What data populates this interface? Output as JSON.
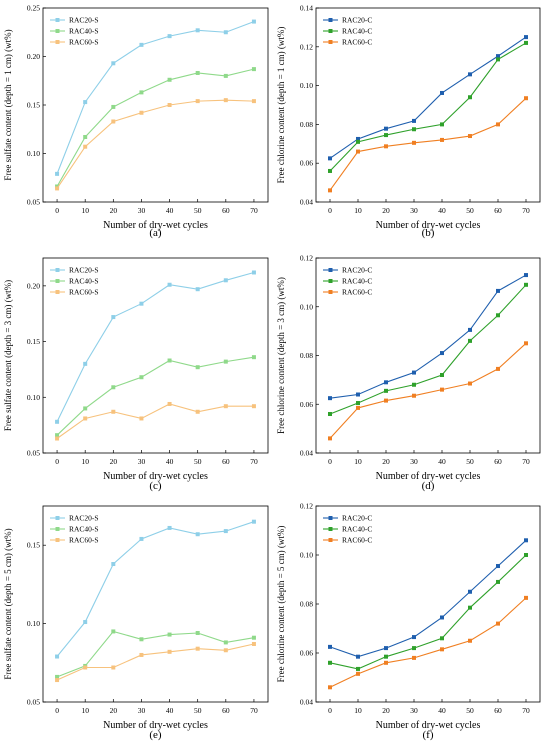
{
  "panels_order": [
    "a",
    "b",
    "c",
    "d",
    "e",
    "f"
  ],
  "chart_data": [
    {
      "id": "a",
      "panel_label": "(a)",
      "type": "line",
      "x": [
        0,
        10,
        20,
        30,
        40,
        50,
        60,
        70
      ],
      "xlabel": "Number of dry-wet cycles",
      "ylabel": "Free sulfate content (depth = 1 cm) (wt%)",
      "ylim": [
        0.05,
        0.25
      ],
      "yticks": [
        "0.05",
        "0.10",
        "0.15",
        "0.20",
        "0.25"
      ],
      "legend_position": "top-left",
      "series": [
        {
          "name": "RAC20-S",
          "color": "#8ecfe8",
          "values": [
            0.079,
            0.153,
            0.193,
            0.212,
            0.221,
            0.227,
            0.225,
            0.236
          ]
        },
        {
          "name": "RAC40-S",
          "color": "#8fd98a",
          "values": [
            0.066,
            0.117,
            0.148,
            0.163,
            0.176,
            0.183,
            0.18,
            0.187
          ]
        },
        {
          "name": "RAC60-S",
          "color": "#f7c27d",
          "values": [
            0.064,
            0.107,
            0.133,
            0.142,
            0.15,
            0.154,
            0.155,
            0.154
          ]
        }
      ]
    },
    {
      "id": "b",
      "panel_label": "(b)",
      "type": "line",
      "x": [
        0,
        10,
        20,
        30,
        40,
        50,
        60,
        70
      ],
      "xlabel": "Number of dry-wet cycles",
      "ylabel": "Free chlorine content (depth = 1 cm) (wt%)",
      "ylim": [
        0.04,
        0.14
      ],
      "yticks": [
        "0.04",
        "0.06",
        "0.08",
        "0.10",
        "0.12",
        "0.14"
      ],
      "legend_position": "top-left",
      "series": [
        {
          "name": "RAC20-C",
          "color": "#1f5fae",
          "values": [
            0.0625,
            0.0725,
            0.0778,
            0.0818,
            0.0962,
            0.1058,
            0.1152,
            0.125
          ]
        },
        {
          "name": "RAC40-C",
          "color": "#2fa12b",
          "values": [
            0.056,
            0.071,
            0.0745,
            0.0775,
            0.08,
            0.094,
            0.1135,
            0.122
          ]
        },
        {
          "name": "RAC60-C",
          "color": "#f07f22",
          "values": [
            0.046,
            0.066,
            0.0687,
            0.0705,
            0.072,
            0.074,
            0.08,
            0.0935
          ]
        }
      ]
    },
    {
      "id": "c",
      "panel_label": "(c)",
      "type": "line",
      "x": [
        0,
        10,
        20,
        30,
        40,
        50,
        60,
        70
      ],
      "xlabel": "Number of dry-wet cycles",
      "ylabel": "Free sulfate content (depth = 3 cm) (wt%)",
      "ylim": [
        0.05,
        0.225
      ],
      "yticks": [
        "0.05",
        "0.10",
        "0.15",
        "0.20"
      ],
      "legend_position": "top-left",
      "series": [
        {
          "name": "RAC20-S",
          "color": "#8ecfe8",
          "values": [
            0.078,
            0.13,
            0.172,
            0.184,
            0.201,
            0.197,
            0.205,
            0.212
          ]
        },
        {
          "name": "RAC40-S",
          "color": "#8fd98a",
          "values": [
            0.066,
            0.09,
            0.109,
            0.118,
            0.133,
            0.127,
            0.132,
            0.136
          ]
        },
        {
          "name": "RAC60-S",
          "color": "#f7c27d",
          "values": [
            0.063,
            0.081,
            0.087,
            0.081,
            0.094,
            0.087,
            0.092,
            0.092
          ]
        }
      ]
    },
    {
      "id": "d",
      "panel_label": "(d)",
      "type": "line",
      "x": [
        0,
        10,
        20,
        30,
        40,
        50,
        60,
        70
      ],
      "xlabel": "Number of dry-wet cycles",
      "ylabel": "Free chlorine content (depth = 3 cm) (wt%)",
      "ylim": [
        0.04,
        0.12
      ],
      "yticks": [
        "0.04",
        "0.06",
        "0.08",
        "0.10",
        "0.12"
      ],
      "legend_position": "top-left",
      "series": [
        {
          "name": "RAC20-C",
          "color": "#1f5fae",
          "values": [
            0.0625,
            0.064,
            0.069,
            0.073,
            0.081,
            0.0905,
            0.1065,
            0.113
          ]
        },
        {
          "name": "RAC40-C",
          "color": "#2fa12b",
          "values": [
            0.056,
            0.0605,
            0.0655,
            0.068,
            0.072,
            0.086,
            0.0965,
            0.109
          ]
        },
        {
          "name": "RAC60-C",
          "color": "#f07f22",
          "values": [
            0.046,
            0.0585,
            0.0615,
            0.0635,
            0.066,
            0.0685,
            0.0745,
            0.085
          ]
        }
      ]
    },
    {
      "id": "e",
      "panel_label": "(e)",
      "type": "line",
      "x": [
        0,
        10,
        20,
        30,
        40,
        50,
        60,
        70
      ],
      "xlabel": "Number of dry-wet cycles",
      "ylabel": "Free sulfate content (depth = 5 cm) (wt%)",
      "ylim": [
        0.05,
        0.175
      ],
      "yticks": [
        "0.05",
        "0.10",
        "0.15"
      ],
      "legend_position": "top-left",
      "series": [
        {
          "name": "RAC20-S",
          "color": "#8ecfe8",
          "values": [
            0.079,
            0.101,
            0.138,
            0.154,
            0.161,
            0.157,
            0.159,
            0.165
          ]
        },
        {
          "name": "RAC40-S",
          "color": "#8fd98a",
          "values": [
            0.066,
            0.073,
            0.095,
            0.09,
            0.093,
            0.094,
            0.088,
            0.091
          ]
        },
        {
          "name": "RAC60-S",
          "color": "#f7c27d",
          "values": [
            0.064,
            0.072,
            0.072,
            0.08,
            0.082,
            0.084,
            0.083,
            0.087
          ]
        }
      ]
    },
    {
      "id": "f",
      "panel_label": "(f)",
      "type": "line",
      "x": [
        0,
        10,
        20,
        30,
        40,
        50,
        60,
        70
      ],
      "xlabel": "Number of dry-wet cycles",
      "ylabel": "Free chlorine content (depth = 5 cm) (wt%)",
      "ylim": [
        0.04,
        0.12
      ],
      "yticks": [
        "0.04",
        "0.06",
        "0.08",
        "0.10",
        "0.12"
      ],
      "legend_position": "top-left",
      "series": [
        {
          "name": "RAC20-C",
          "color": "#1f5fae",
          "values": [
            0.0625,
            0.0585,
            0.062,
            0.0665,
            0.0745,
            0.085,
            0.0955,
            0.106
          ]
        },
        {
          "name": "RAC40-C",
          "color": "#2fa12b",
          "values": [
            0.056,
            0.0535,
            0.0585,
            0.062,
            0.066,
            0.0785,
            0.089,
            0.1
          ]
        },
        {
          "name": "RAC60-C",
          "color": "#f07f22",
          "values": [
            0.046,
            0.0515,
            0.056,
            0.058,
            0.0615,
            0.065,
            0.072,
            0.0825
          ]
        }
      ]
    }
  ]
}
